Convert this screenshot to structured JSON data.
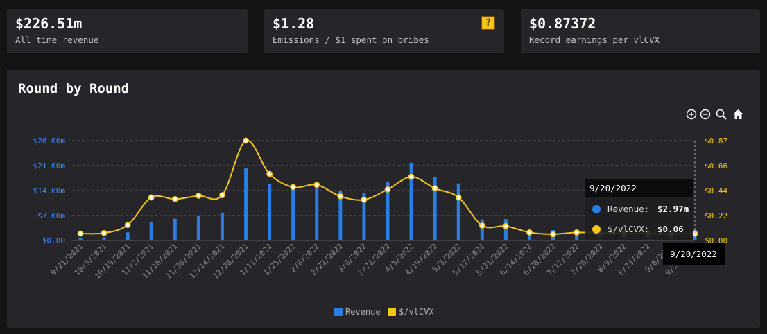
{
  "stats": [
    {
      "value": "$226.51m",
      "label": "All time revenue"
    },
    {
      "value": "$1.28",
      "label": "Emissions / $1 spent on bribes"
    },
    {
      "value": "$0.87372",
      "label": "Record earnings per vlCVX"
    }
  ],
  "panel": {
    "title": "Round by Round"
  },
  "toolbar": [
    "zoom-in-icon",
    "zoom-out-icon",
    "zoom-select-icon",
    "home-icon"
  ],
  "tooltip": {
    "date": "9/20/2022",
    "rows": [
      {
        "label": "Revenue:",
        "value": "$2.97m",
        "color": "#2a7de1"
      },
      {
        "label": "$/vlCVX:",
        "value": "$0.06",
        "color": "#f5c518"
      }
    ]
  },
  "crosshair_label": "9/20/2022",
  "chart_data": {
    "type": "bar+line",
    "categories": [
      "9/21/2021",
      "10/5/2021",
      "10/19/2021",
      "11/2/2021",
      "11/16/2021",
      "11/30/2021",
      "12/14/2021",
      "12/28/2021",
      "1/11/2022",
      "1/25/2022",
      "2/8/2022",
      "2/22/2022",
      "3/8/2022",
      "3/22/2022",
      "4/5/2022",
      "4/19/2022",
      "5/3/2022",
      "5/17/2022",
      "5/31/2022",
      "6/14/2022",
      "6/28/2022",
      "7/12/2022",
      "7/26/2022",
      "8/9/2022",
      "8/23/2022",
      "9/6/2022",
      "9/20/2022"
    ],
    "series": [
      {
        "name": "Revenue",
        "axis": "left",
        "kind": "bar",
        "color": "#2a7de1",
        "values": [
          0.8,
          0.9,
          2.3,
          5.2,
          6.1,
          6.8,
          7.8,
          20.2,
          15.8,
          15.3,
          15.6,
          13.8,
          13.3,
          16.5,
          21.8,
          17.9,
          16.0,
          5.9,
          6.0,
          2.6,
          2.9,
          3.0,
          2.9,
          2.5,
          2.8,
          2.3,
          2.97
        ]
      },
      {
        "name": "$/vlCVX",
        "axis": "right",
        "kind": "line",
        "color": "#f5c518",
        "values": [
          0.06,
          0.065,
          0.135,
          0.375,
          0.36,
          0.39,
          0.395,
          0.87,
          0.58,
          0.465,
          0.485,
          0.385,
          0.355,
          0.445,
          0.555,
          0.455,
          0.375,
          0.13,
          0.125,
          0.07,
          0.055,
          0.07,
          0.065,
          0.06,
          0.06,
          0.055,
          0.06
        ]
      }
    ],
    "left_axis": {
      "ticks": [
        "$0.00",
        "$7.00m",
        "$14.00m",
        "$21.00m",
        "$28.00m"
      ],
      "tick_values": [
        0,
        7,
        14,
        21,
        28
      ],
      "ylim": [
        0,
        28
      ]
    },
    "right_axis": {
      "ticks": [
        "$0.00",
        "$0.22",
        "$0.44",
        "$0.66",
        "$0.87"
      ],
      "tick_values": [
        0,
        0.2175,
        0.435,
        0.6525,
        0.87
      ],
      "ylim": [
        0,
        0.87
      ]
    },
    "grid": true,
    "legend": {
      "position": "bottom-center",
      "items": [
        "Revenue",
        "$/vlCVX"
      ]
    }
  }
}
